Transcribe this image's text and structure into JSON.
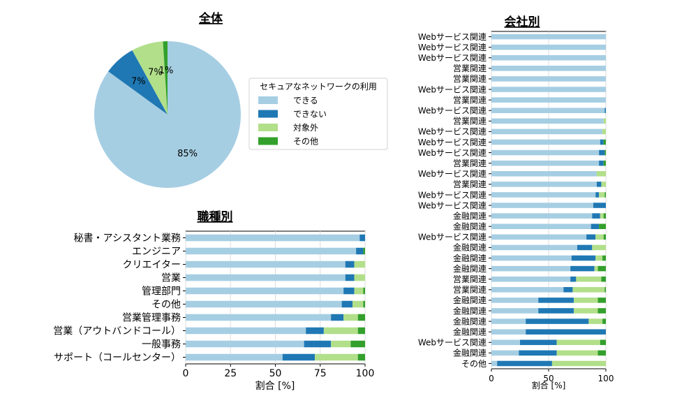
{
  "colors": {
    "can": "#a6cee3",
    "cannot": "#1f78b4",
    "na": "#b2df8a",
    "other": "#33a02c"
  },
  "chart_data": [
    {
      "id": "overall",
      "type": "pie",
      "title": "全体",
      "legend_title": "セキュアなネットワークの利用",
      "legend_position": "right",
      "labels": [
        "できる",
        "できない",
        "対象外",
        "その他"
      ],
      "values": [
        85,
        7,
        7,
        1
      ],
      "value_labels": [
        "85%",
        "7%",
        "7%",
        "1%"
      ]
    },
    {
      "id": "by_job",
      "type": "bar",
      "orientation": "horizontal",
      "stacked": true,
      "title": "職種別",
      "xlabel": "割合 [%]",
      "xlim": [
        0,
        100
      ],
      "xticks": [
        "0",
        "25",
        "50",
        "75",
        "100"
      ],
      "grid": true,
      "categories": [
        "秘書・アシスタント業務",
        "エンジニア",
        "クリエイター",
        "営業",
        "管理部門",
        "その他",
        "営業管理事務",
        "営業（アウトバンドコール）",
        "一般事務",
        "サポート（コールセンター）"
      ],
      "series": [
        {
          "values": [
            97,
            95,
            89,
            89,
            88,
            87,
            81,
            67,
            66,
            54
          ]
        },
        {
          "values": [
            3,
            4,
            5,
            5,
            6,
            6,
            7,
            10,
            15,
            18
          ]
        },
        {
          "values": [
            0,
            0,
            6,
            6,
            5,
            6,
            8,
            19,
            11,
            24
          ]
        },
        {
          "values": [
            0,
            1,
            0,
            0,
            1,
            1,
            4,
            4,
            8,
            4
          ]
        }
      ]
    },
    {
      "id": "by_company",
      "type": "bar",
      "orientation": "horizontal",
      "stacked": true,
      "title": "会社別",
      "xlabel": "割合 [%]",
      "xlim": [
        0,
        100
      ],
      "xticks": [
        "0",
        "50",
        "100"
      ],
      "grid": true,
      "categories": [
        "Webサービス関連",
        "Webサービス関連",
        "Webサービス関連",
        "営業関連",
        "営業関連",
        "Webサービス関連",
        "営業関連",
        "Webサービス関連",
        "営業関連",
        "Webサービス関連",
        "Webサービス関連",
        "Webサービス関連",
        "営業関連",
        "Webサービス関連",
        "営業関連",
        "Webサービス関連",
        "Webサービス関連",
        "金融関連",
        "金融関連",
        "Webサービス関連",
        "金融関連",
        "金融関連",
        "金融関連",
        "営業関連",
        "営業関連",
        "金融関連",
        "金融関連",
        "金融関連",
        "金融関連",
        "Webサービス関連",
        "金融関連",
        "その他"
      ],
      "series": [
        {
          "values": [
            100,
            100,
            100,
            100,
            100,
            100,
            100,
            99,
            98,
            97,
            95,
            94,
            94,
            92,
            92,
            91,
            89,
            88,
            87,
            83,
            75,
            70,
            69,
            69,
            63,
            41,
            41,
            30,
            30,
            25,
            24,
            5
          ]
        },
        {
          "values": [
            0,
            0,
            0,
            0,
            0,
            0,
            0,
            1,
            0,
            0,
            3,
            5,
            4,
            0,
            4,
            3,
            11,
            7,
            7,
            8,
            13,
            21,
            21,
            5,
            8,
            31,
            31,
            55,
            70,
            32,
            33,
            48
          ]
        },
        {
          "values": [
            0,
            0,
            0,
            0,
            0,
            0,
            0,
            0,
            2,
            3,
            0,
            0,
            0,
            8,
            4,
            5,
            0,
            3,
            0,
            7,
            12,
            6,
            3,
            22,
            28,
            21,
            21,
            12,
            0,
            38,
            36,
            47
          ]
        },
        {
          "values": [
            0,
            0,
            0,
            0,
            0,
            0,
            0,
            0,
            0,
            0,
            2,
            1,
            2,
            0,
            0,
            1,
            0,
            2,
            6,
            2,
            0,
            3,
            7,
            4,
            1,
            7,
            7,
            3,
            0,
            5,
            7,
            0
          ]
        }
      ]
    }
  ]
}
